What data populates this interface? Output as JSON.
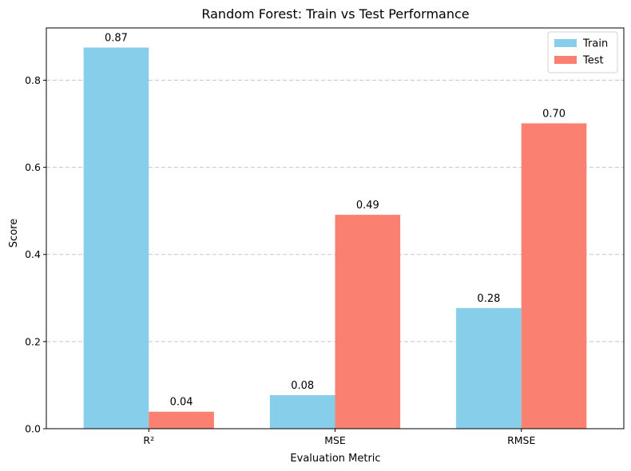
{
  "chart_data": {
    "type": "bar",
    "title": "Random Forest: Train vs Test Performance",
    "xlabel": "Evaluation Metric",
    "ylabel": "Score",
    "categories": [
      "R²",
      "MSE",
      "RMSE"
    ],
    "series": [
      {
        "name": "Train",
        "color": "#87CEEB",
        "values": [
          0.875,
          0.077,
          0.277
        ],
        "labels": [
          "0.87",
          "0.08",
          "0.28"
        ]
      },
      {
        "name": "Test",
        "color": "#FA8072",
        "values": [
          0.039,
          0.491,
          0.701
        ],
        "labels": [
          "0.04",
          "0.49",
          "0.70"
        ]
      }
    ],
    "ylim": [
      0,
      0.92
    ],
    "yticks": [
      0.0,
      0.2,
      0.4,
      0.6,
      0.8
    ],
    "ytick_labels": [
      "0.0",
      "0.2",
      "0.4",
      "0.6",
      "0.8"
    ],
    "grid": "y-dashed",
    "legend_position": "top-right"
  }
}
